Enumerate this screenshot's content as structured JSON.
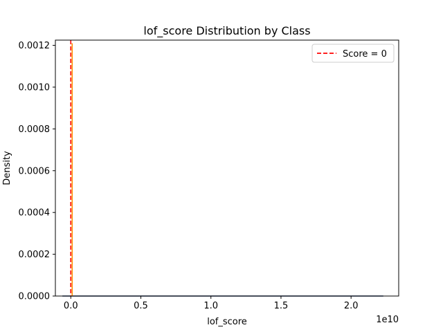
{
  "chart_data": {
    "type": "line",
    "title": "lof_score Distribution by Class",
    "xlabel": "lof_score",
    "ylabel": "Density",
    "x_offset_label": "1e10",
    "xlim": [
      -1100000000.0,
      23400000000.0
    ],
    "ylim": [
      0,
      0.001225
    ],
    "x_ticks": [
      0,
      5000000000.0,
      10000000000.0,
      15000000000.0,
      20000000000.0
    ],
    "x_tick_labels": [
      "0.0",
      "0.5",
      "1.0",
      "1.5",
      "2.0"
    ],
    "y_ticks": [
      0,
      0.0002,
      0.0004,
      0.0006,
      0.0008,
      0.001,
      0.0012
    ],
    "y_tick_labels": [
      "0.0000",
      "0.0002",
      "0.0004",
      "0.0006",
      "0.0008",
      "0.0010",
      "0.0012"
    ],
    "grid": false,
    "legend_position": "top-right",
    "series": [
      {
        "color": "#1f3a6e",
        "style": "solid",
        "x": [
          -600000000.0,
          22300000000.0
        ],
        "y": [
          0,
          0
        ]
      },
      {
        "color": "#ff8c00",
        "style": "solid",
        "x": [
          100000000.0,
          100000000.0
        ],
        "y": [
          0,
          0.00121
        ]
      }
    ],
    "reference_lines": [
      {
        "orientation": "vertical",
        "x": 0,
        "color": "#ff0000",
        "style": "dashed",
        "label": "Score = 0"
      }
    ]
  }
}
